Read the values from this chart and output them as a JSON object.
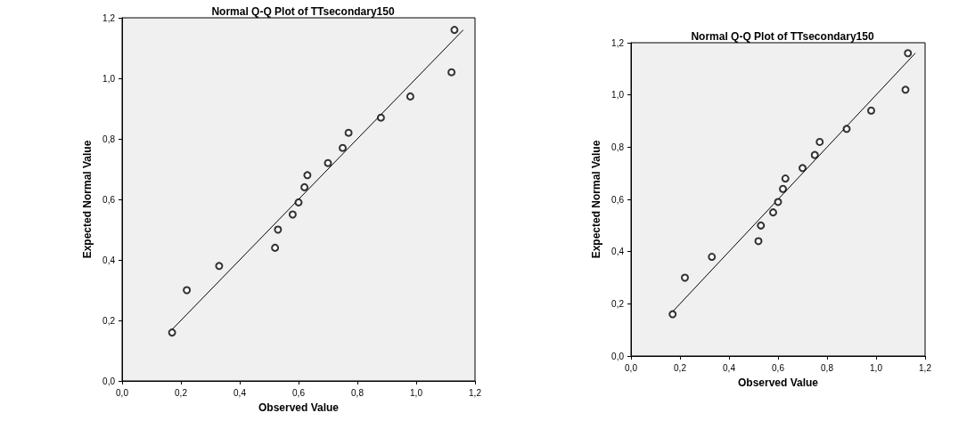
{
  "chart_data": [
    {
      "type": "scatter",
      "title": "Normal Q-Q Plot of TTsecondary150",
      "xlabel": "Observed Value",
      "ylabel": "Expected Normal Value",
      "xlim": [
        0,
        1.2
      ],
      "ylim": [
        0,
        1.2
      ],
      "xticks": [
        {
          "value": 0,
          "label": "0,0"
        },
        {
          "value": 0.2,
          "label": "0,2"
        },
        {
          "value": 0.4,
          "label": "0,4"
        },
        {
          "value": 0.6,
          "label": "0,6"
        },
        {
          "value": 0.8,
          "label": "0,8"
        },
        {
          "value": 1,
          "label": "1,0"
        },
        {
          "value": 1.2,
          "label": "1,2"
        }
      ],
      "yticks": [
        {
          "value": 0,
          "label": "0,0"
        },
        {
          "value": 0.2,
          "label": "0,2"
        },
        {
          "value": 0.4,
          "label": "0,4"
        },
        {
          "value": 0.6,
          "label": "0,6"
        },
        {
          "value": 0.8,
          "label": "0,8"
        },
        {
          "value": 1,
          "label": "1,0"
        },
        {
          "value": 1.2,
          "label": "1,2"
        }
      ],
      "grid": false,
      "series": [
        {
          "color": "#000000",
          "marker": "circle",
          "x": [
            0.17,
            0.22,
            0.33,
            0.52,
            0.53,
            0.58,
            0.6,
            0.62,
            0.63,
            0.7,
            0.75,
            0.77,
            0.88,
            0.98,
            1.12,
            1.13
          ],
          "values": [
            0.16,
            0.3,
            0.38,
            0.44,
            0.5,
            0.55,
            0.59,
            0.64,
            0.68,
            0.72,
            0.77,
            0.82,
            0.87,
            0.94,
            1.02,
            1.16
          ]
        },
        {
          "type": "line",
          "color": "#000000",
          "marker": "none",
          "x": [
            0.17,
            1.16
          ],
          "values": [
            0.17,
            1.16
          ]
        }
      ]
    },
    {
      "type": "scatter",
      "title": "Normal Q-Q Plot of TTsecondary150",
      "xlabel": "Observed Value",
      "ylabel": "Expected Normal Value",
      "xlim": [
        0,
        1.2
      ],
      "ylim": [
        0,
        1.2
      ],
      "xticks": [
        {
          "value": 0,
          "label": "0,0"
        },
        {
          "value": 0.2,
          "label": "0,2"
        },
        {
          "value": 0.4,
          "label": "0,4"
        },
        {
          "value": 0.6,
          "label": "0,6"
        },
        {
          "value": 0.8,
          "label": "0,8"
        },
        {
          "value": 1,
          "label": "1,0"
        },
        {
          "value": 1.2,
          "label": "1,2"
        }
      ],
      "yticks": [
        {
          "value": 0,
          "label": "0,0"
        },
        {
          "value": 0.2,
          "label": "0,2"
        },
        {
          "value": 0.4,
          "label": "0,4"
        },
        {
          "value": 0.6,
          "label": "0,6"
        },
        {
          "value": 0.8,
          "label": "0,8"
        },
        {
          "value": 1,
          "label": "1,0"
        },
        {
          "value": 1.2,
          "label": "1,2"
        }
      ],
      "grid": false,
      "series": [
        {
          "color": "#000000",
          "marker": "circle",
          "x": [
            0.17,
            0.22,
            0.33,
            0.52,
            0.53,
            0.58,
            0.6,
            0.62,
            0.63,
            0.7,
            0.75,
            0.77,
            0.88,
            0.98,
            1.12,
            1.13
          ],
          "values": [
            0.16,
            0.3,
            0.38,
            0.44,
            0.5,
            0.55,
            0.59,
            0.64,
            0.68,
            0.72,
            0.77,
            0.82,
            0.87,
            0.94,
            1.02,
            1.16
          ]
        },
        {
          "type": "line",
          "color": "#000000",
          "marker": "none",
          "x": [
            0.17,
            1.16
          ],
          "values": [
            0.17,
            1.16
          ]
        }
      ]
    }
  ]
}
